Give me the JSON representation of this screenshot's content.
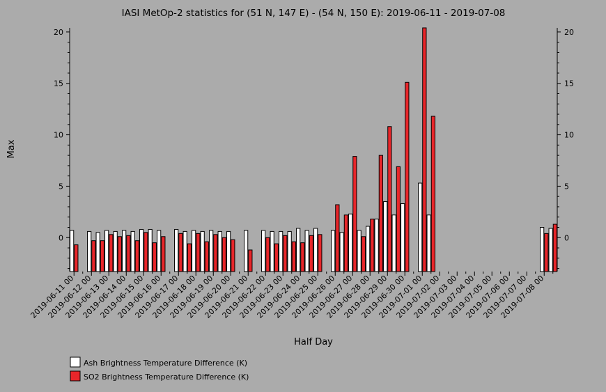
{
  "chart_data": {
    "type": "bar",
    "title": "IASI MetOp-2 statistics for (51 N, 147 E) - (54 N, 150 E): 2019-06-11 - 2019-07-08",
    "xlabel": "Half Day",
    "ylabel": "Max",
    "ylim": [
      -3.3,
      20.4
    ],
    "yticks": [
      0,
      5,
      10,
      15,
      20
    ],
    "grid": false,
    "legend_position": "bottom-left",
    "categories": [
      "2019-06-11 00",
      "2019-06-11 12",
      "2019-06-12 00",
      "2019-06-12 12",
      "2019-06-13 00",
      "2019-06-13 12",
      "2019-06-14 00",
      "2019-06-14 12",
      "2019-06-15 00",
      "2019-06-15 12",
      "2019-06-16 00",
      "2019-06-16 12",
      "2019-06-17 00",
      "2019-06-17 12",
      "2019-06-18 00",
      "2019-06-18 12",
      "2019-06-19 00",
      "2019-06-19 12",
      "2019-06-20 00",
      "2019-06-20 12",
      "2019-06-21 00",
      "2019-06-21 12",
      "2019-06-22 00",
      "2019-06-22 12",
      "2019-06-23 00",
      "2019-06-23 12",
      "2019-06-24 00",
      "2019-06-24 12",
      "2019-06-25 00",
      "2019-06-25 12",
      "2019-06-26 00",
      "2019-06-26 12",
      "2019-06-27 00",
      "2019-06-27 12",
      "2019-06-28 00",
      "2019-06-28 12",
      "2019-06-29 00",
      "2019-06-29 12",
      "2019-06-30 00",
      "2019-06-30 12",
      "2019-07-01 00",
      "2019-07-01 12",
      "2019-07-02 00",
      "2019-07-02 12",
      "2019-07-03 00",
      "2019-07-03 12",
      "2019-07-04 00",
      "2019-07-04 12",
      "2019-07-05 00",
      "2019-07-05 12",
      "2019-07-06 00",
      "2019-07-06 12",
      "2019-07-07 00",
      "2019-07-07 12",
      "2019-07-08 00",
      "2019-07-08 12"
    ],
    "tick_labels": [
      "2019-06-11 00",
      "2019-06-12 00",
      "2019-06-13 00",
      "2019-06-14 00",
      "2019-06-15 00",
      "2019-06-16 00",
      "2019-06-17 00",
      "2019-06-18 00",
      "2019-06-19 00",
      "2019-06-20 00",
      "2019-06-21 00",
      "2019-06-22 00",
      "2019-06-23 00",
      "2019-06-24 00",
      "2019-06-25 00",
      "2019-06-26 00",
      "2019-06-27 00",
      "2019-06-28 00",
      "2019-06-29 00",
      "2019-06-30 00",
      "2019-07-01 00",
      "2019-07-02 00",
      "2019-07-03 00",
      "2019-07-04 00",
      "2019-07-05 00",
      "2019-07-06 00",
      "2019-07-07 00",
      "2019-07-08 00"
    ],
    "series": [
      {
        "name": "Ash Brightness Temperature Difference (K)",
        "color": "#ffffff",
        "values": [
          0.7,
          null,
          0.6,
          0.5,
          0.7,
          0.6,
          0.7,
          0.6,
          0.8,
          0.8,
          0.7,
          null,
          0.8,
          0.6,
          0.7,
          0.6,
          0.7,
          0.6,
          0.6,
          null,
          0.7,
          null,
          0.7,
          0.6,
          0.6,
          0.6,
          0.9,
          0.7,
          0.9,
          null,
          0.7,
          0.5,
          2.3,
          0.7,
          1.1,
          1.8,
          3.5,
          2.2,
          3.3,
          null,
          5.3,
          2.2,
          null,
          null,
          null,
          null,
          null,
          null,
          null,
          null,
          null,
          null,
          null,
          null,
          1.0,
          0.9
        ]
      },
      {
        "name": "SO2 Brightness Temperature Difference (K)",
        "color": "#e8262a",
        "values": [
          -0.7,
          null,
          -0.3,
          -0.3,
          0.3,
          0.1,
          0.2,
          -0.3,
          0.5,
          -0.5,
          0.1,
          null,
          0.4,
          -0.6,
          0.4,
          -0.4,
          0.3,
          0.0,
          -0.2,
          null,
          -1.2,
          null,
          0.0,
          -0.6,
          0.2,
          -0.4,
          -0.5,
          0.2,
          0.3,
          null,
          3.2,
          2.2,
          7.9,
          0.1,
          1.8,
          8.0,
          10.8,
          6.9,
          15.1,
          null,
          20.4,
          11.8,
          null,
          null,
          null,
          null,
          null,
          null,
          null,
          null,
          null,
          null,
          null,
          null,
          0.4,
          1.3
        ]
      }
    ]
  }
}
